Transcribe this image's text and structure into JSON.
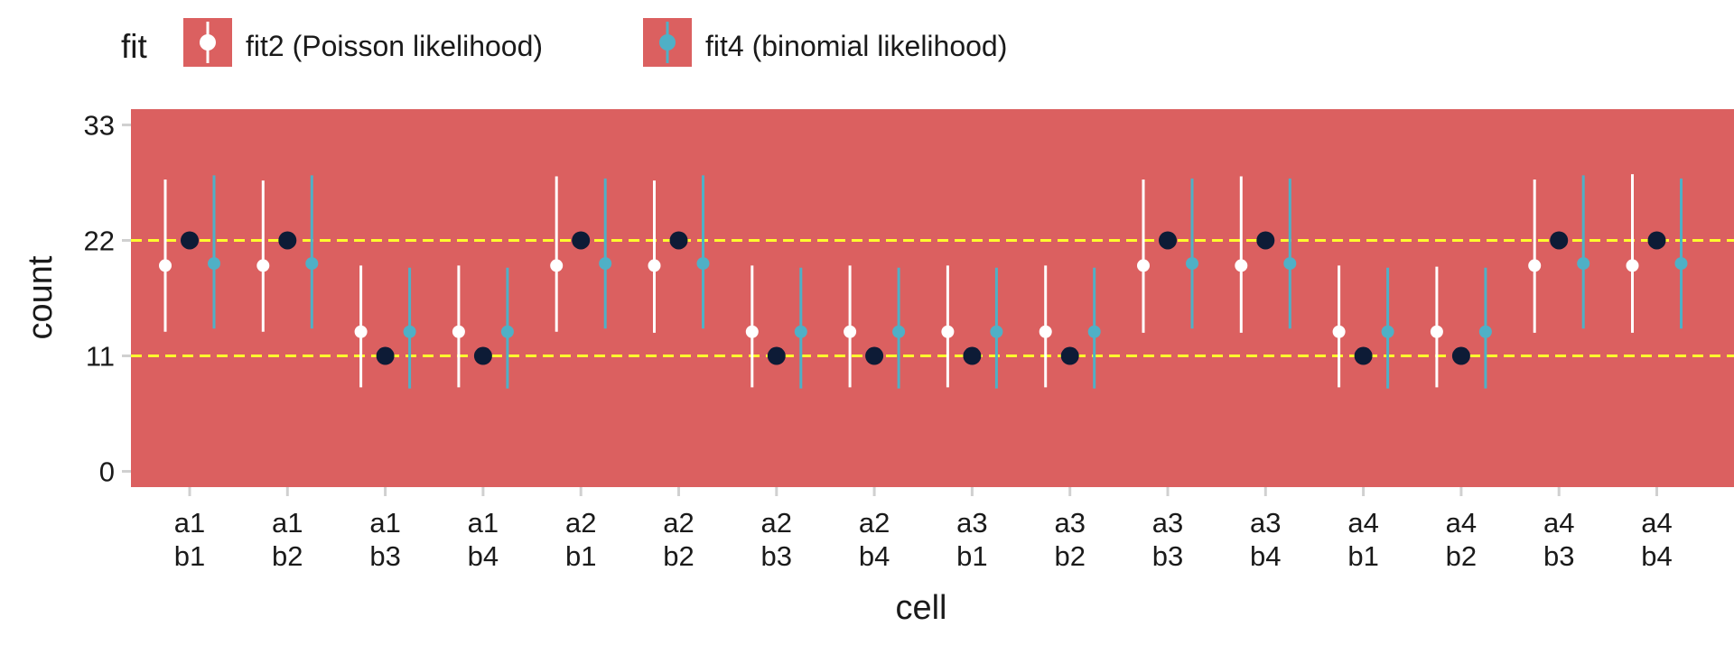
{
  "chart_data": {
    "type": "scatter",
    "title": "",
    "xlabel": "cell",
    "ylabel": "count",
    "ylim": [
      -1.5,
      34.5
    ],
    "yticks": [
      0,
      11,
      22,
      33
    ],
    "categories": [
      [
        "a1",
        "b1"
      ],
      [
        "a1",
        "b2"
      ],
      [
        "a1",
        "b3"
      ],
      [
        "a1",
        "b4"
      ],
      [
        "a2",
        "b1"
      ],
      [
        "a2",
        "b2"
      ],
      [
        "a2",
        "b3"
      ],
      [
        "a2",
        "b4"
      ],
      [
        "a3",
        "b1"
      ],
      [
        "a3",
        "b2"
      ],
      [
        "a3",
        "b3"
      ],
      [
        "a3",
        "b4"
      ],
      [
        "a4",
        "b1"
      ],
      [
        "a4",
        "b2"
      ],
      [
        "a4",
        "b3"
      ],
      [
        "a4",
        "b4"
      ]
    ],
    "reference_lines": [
      11,
      22
    ],
    "observed": {
      "color": "#0d1b36",
      "values": [
        22,
        22,
        11,
        11,
        22,
        22,
        11,
        11,
        11,
        11,
        22,
        22,
        11,
        11,
        22,
        22
      ]
    },
    "legend": {
      "title": "fit",
      "position": "top-left"
    },
    "series": [
      {
        "name": "fit2 (Poisson likelihood)",
        "color": "#ffffff",
        "values": [
          19.6,
          19.6,
          13.3,
          13.3,
          19.6,
          19.6,
          13.3,
          13.3,
          13.3,
          13.3,
          19.6,
          19.6,
          13.3,
          13.3,
          19.6,
          19.6
        ],
        "lower": [
          13.3,
          13.3,
          8.0,
          8.0,
          13.3,
          13.2,
          8.0,
          8.0,
          8.0,
          8.0,
          13.2,
          13.2,
          8.0,
          8.0,
          13.2,
          13.2
        ],
        "upper": [
          27.8,
          27.7,
          19.6,
          19.6,
          28.1,
          27.7,
          19.6,
          19.6,
          19.6,
          19.6,
          27.8,
          28.1,
          19.6,
          19.5,
          27.8,
          28.3
        ]
      },
      {
        "name": "fit4 (binomial likelihood)",
        "color": "#4fb0c6",
        "values": [
          19.8,
          19.8,
          13.3,
          13.3,
          19.8,
          19.8,
          13.3,
          13.3,
          13.3,
          13.3,
          19.8,
          19.8,
          13.3,
          13.3,
          19.8,
          19.8
        ],
        "lower": [
          13.6,
          13.6,
          7.9,
          7.9,
          13.6,
          13.6,
          7.9,
          7.9,
          7.9,
          7.9,
          13.6,
          13.6,
          7.9,
          7.9,
          13.6,
          13.6
        ],
        "upper": [
          28.2,
          28.2,
          19.4,
          19.4,
          27.9,
          28.2,
          19.4,
          19.4,
          19.4,
          19.4,
          27.9,
          27.9,
          19.4,
          19.4,
          28.2,
          27.9
        ]
      }
    ],
    "colors": {
      "panel": "#db6060",
      "reference_line": "#ffff2e",
      "tick": "#d0d0d0",
      "legend_key": "#db6060"
    },
    "grid": false
  }
}
